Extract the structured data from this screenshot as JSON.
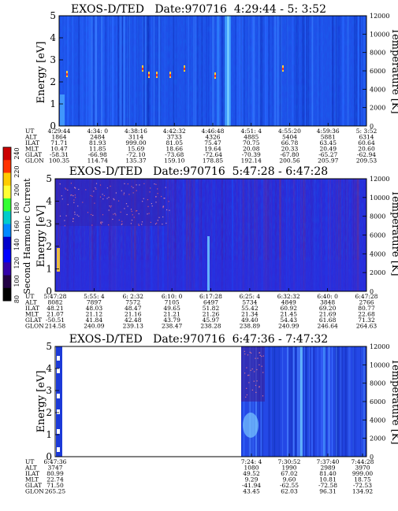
{
  "colorbar": {
    "label": "Second Harmonic Current",
    "ticks": [
      "240",
      "220",
      "200",
      "180",
      "160",
      "140",
      "120",
      "100",
      "80"
    ],
    "colors": [
      "#cc0000",
      "#ff3300",
      "#ffcc00",
      "#ffff33",
      "#33ff33",
      "#00cccc",
      "#0088ff",
      "#0000cc",
      "#0000ff",
      "#3300aa",
      "#220044",
      "#000000"
    ]
  },
  "chart_data": [
    {
      "type": "heatmap",
      "title": "EXOS-D/TED   Date:970716  4:29:44 - 5: 3:52",
      "ylabel": "Energy [eV]",
      "y2label": "Temperature [K]",
      "ylim": [
        0,
        5
      ],
      "y2lim": [
        0,
        12000
      ],
      "yticks": [
        "0",
        "1",
        "2",
        "3",
        "4",
        "5"
      ],
      "y2ticks": [
        "0",
        "2000",
        "4000",
        "6000",
        "8000",
        "10000",
        "12000"
      ],
      "ephemeris": {
        "labels": [
          "UT",
          "ALT",
          "ILAT",
          "MLT",
          "GLAT",
          "GLON"
        ],
        "columns": [
          [
            "4:29:44",
            "1864",
            "71.71",
            "10.47",
            "-58.31",
            "100.35"
          ],
          [
            "4:34: 0",
            "2484",
            "81.93",
            "11.85",
            "-66.98",
            "114.74"
          ],
          [
            "4:38:16",
            "3114",
            "999.00",
            "15.69",
            "-72.10",
            "135.37"
          ],
          [
            "4:42:32",
            "3733",
            "81.05",
            "18.66",
            "-73.68",
            "159.10"
          ],
          [
            "4:46:48",
            "4326",
            "75.47",
            "19.64",
            "-72.64",
            "178.85"
          ],
          [
            "4:51: 4",
            "4885",
            "70.75",
            "20.08",
            "-70.39",
            "192.14"
          ],
          [
            "4:55:20",
            "5404",
            "66.78",
            "20.33",
            "-67.80",
            "200.56"
          ],
          [
            "4:59:36",
            "5881",
            "63.45",
            "20.49",
            "-65.27",
            "205.97"
          ],
          [
            "5: 3:52",
            "6314",
            "60.64",
            "20.60",
            "-62.94",
            "209.53"
          ]
        ]
      }
    },
    {
      "type": "heatmap",
      "title": "EXOS-D/TED   Date:970716  5:47:28 - 6:47:28",
      "ylabel": "Energy [eV]",
      "y2label": "Temperature [K]",
      "ylim": [
        0,
        5
      ],
      "y2lim": [
        0,
        12000
      ],
      "yticks": [
        "0",
        "1",
        "2",
        "3",
        "4",
        "5"
      ],
      "y2ticks": [
        "0",
        "2000",
        "4000",
        "6000",
        "8000",
        "10000",
        "12000"
      ],
      "ephemeris": {
        "labels": [
          "UT",
          "ALT",
          "ILAT",
          "MLT",
          "GLAT",
          "GLON"
        ],
        "columns": [
          [
            "5:47:28",
            "8082",
            "48.21",
            "21.07",
            "-50.51",
            "214.58"
          ],
          [
            "5:55: 4",
            "7897",
            "48.03",
            "21.12",
            "41.84",
            "240.09"
          ],
          [
            "6: 2:32",
            "7572",
            "48.47",
            "21.16",
            "42.48",
            "239.13"
          ],
          [
            "6:10: 0",
            "7105",
            "49.65",
            "21.21",
            "43.79",
            "238.47"
          ],
          [
            "6:17:28",
            "6497",
            "51.82",
            "21.26",
            "45.97",
            "238.28"
          ],
          [
            "6:25: 4",
            "5734",
            "55.42",
            "21.34",
            "49.40",
            "238.89"
          ],
          [
            "6:32:32",
            "4849",
            "60.92",
            "21.45",
            "54.43",
            "240.99"
          ],
          [
            "6:40: 0",
            "3848",
            "69.20",
            "21.69",
            "61.68",
            "246.64"
          ],
          [
            "6:47:28",
            "2766",
            "80.77",
            "22.68",
            "71.32",
            "264.63"
          ]
        ]
      }
    },
    {
      "type": "heatmap",
      "title": "EXOS-D/TED   Date:970716  6:47:36 - 7:47:32",
      "ylabel": "Energy [eV]",
      "y2label": "Temperature [K]",
      "ylim": [
        0,
        5
      ],
      "y2lim": [
        0,
        12000
      ],
      "yticks": [
        "0",
        "1",
        "2",
        "3",
        "4",
        "5"
      ],
      "y2ticks": [
        "0",
        "2000",
        "4000",
        "6000",
        "8000",
        "10000",
        "12000"
      ],
      "ephemeris": {
        "labels": [
          "UT",
          "ALT",
          "ILAT",
          "MLT",
          "GLAT",
          "GLON"
        ],
        "columns": [
          [
            "6:47:36",
            "3747",
            "80.99",
            "22.74",
            "71.50",
            "265.25"
          ],
          [
            "7:24: 4",
            "1080",
            "49.52",
            "9.29",
            "-41.94",
            "43.45"
          ],
          [
            "7:30:52",
            "1990",
            "67.02",
            "9.60",
            "-62.55",
            "62.03"
          ],
          [
            "7:37:40",
            "2989",
            "81.40",
            "10.81",
            "-72.58",
            "96.31"
          ],
          [
            "7:44:28",
            "3970",
            "999.00",
            "18.75",
            "-72.53",
            "134.92"
          ]
        ]
      }
    }
  ]
}
